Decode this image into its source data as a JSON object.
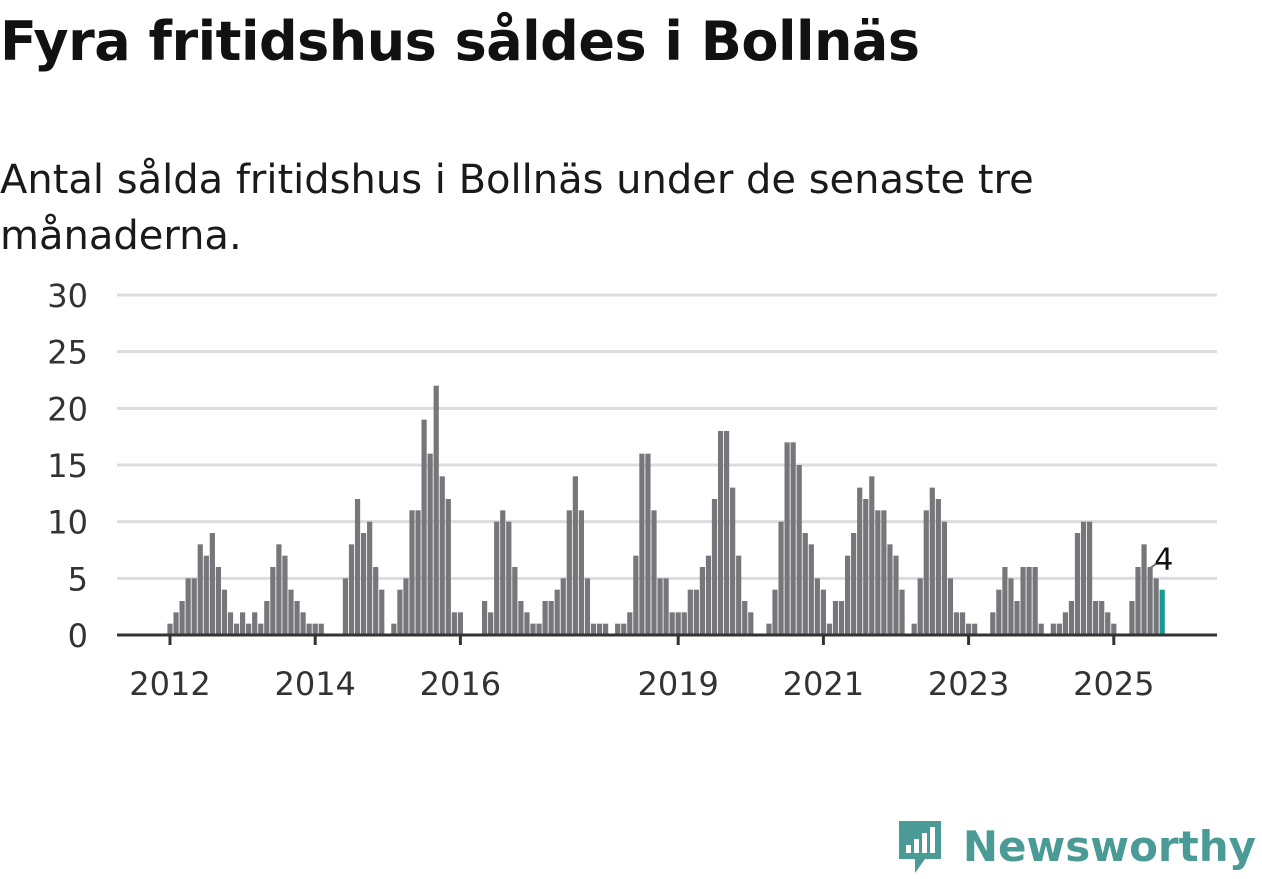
{
  "title": "Fyra fritidshus såldes i Bollnäs",
  "subtitle": "Antal sålda fritidshus i Bollnäs under de senaste tre månaderna.",
  "logo_text": "Newsworthy",
  "colors": {
    "bar": "#77767b",
    "highlight": "#1a9a90",
    "grid": "#dddddd",
    "axis": "#333333",
    "brand": "#4a9a96"
  },
  "chart_data": {
    "type": "bar",
    "xlabel": "",
    "ylabel": "",
    "ylim": [
      0,
      30
    ],
    "yticks": [
      0,
      5,
      10,
      15,
      20,
      25,
      30
    ],
    "xtick_labels": [
      "2012",
      "2014",
      "2016",
      "2019",
      "2021",
      "2023",
      "2025"
    ],
    "grid": true,
    "start_month": "2012-01",
    "values": [
      1,
      2,
      3,
      5,
      5,
      8,
      7,
      9,
      6,
      4,
      2,
      1,
      2,
      1,
      2,
      1,
      3,
      6,
      8,
      7,
      4,
      3,
      2,
      1,
      1,
      1,
      0,
      0,
      0,
      5,
      8,
      12,
      9,
      10,
      6,
      4,
      0,
      1,
      4,
      5,
      11,
      11,
      19,
      16,
      22,
      14,
      12,
      2,
      2,
      0,
      0,
      0,
      3,
      2,
      10,
      11,
      10,
      6,
      3,
      2,
      1,
      1,
      3,
      3,
      4,
      5,
      11,
      14,
      11,
      5,
      1,
      1,
      1,
      0,
      1,
      1,
      2,
      7,
      16,
      16,
      11,
      5,
      5,
      2,
      2,
      2,
      4,
      4,
      6,
      7,
      12,
      18,
      18,
      13,
      7,
      3,
      2,
      0,
      0,
      1,
      4,
      10,
      17,
      17,
      15,
      9,
      8,
      5,
      4,
      1,
      3,
      3,
      7,
      9,
      13,
      12,
      14,
      11,
      11,
      8,
      7,
      4,
      0,
      1,
      5,
      11,
      13,
      12,
      10,
      5,
      2,
      2,
      1,
      1,
      0,
      0,
      2,
      4,
      6,
      5,
      3,
      6,
      6,
      6,
      1,
      0,
      1,
      1,
      2,
      3,
      9,
      10,
      10,
      3,
      3,
      2,
      1,
      0,
      0,
      3,
      6,
      8,
      6,
      5,
      4
    ],
    "highlight_last": true,
    "annotation": {
      "label": "4",
      "value": 4
    }
  }
}
